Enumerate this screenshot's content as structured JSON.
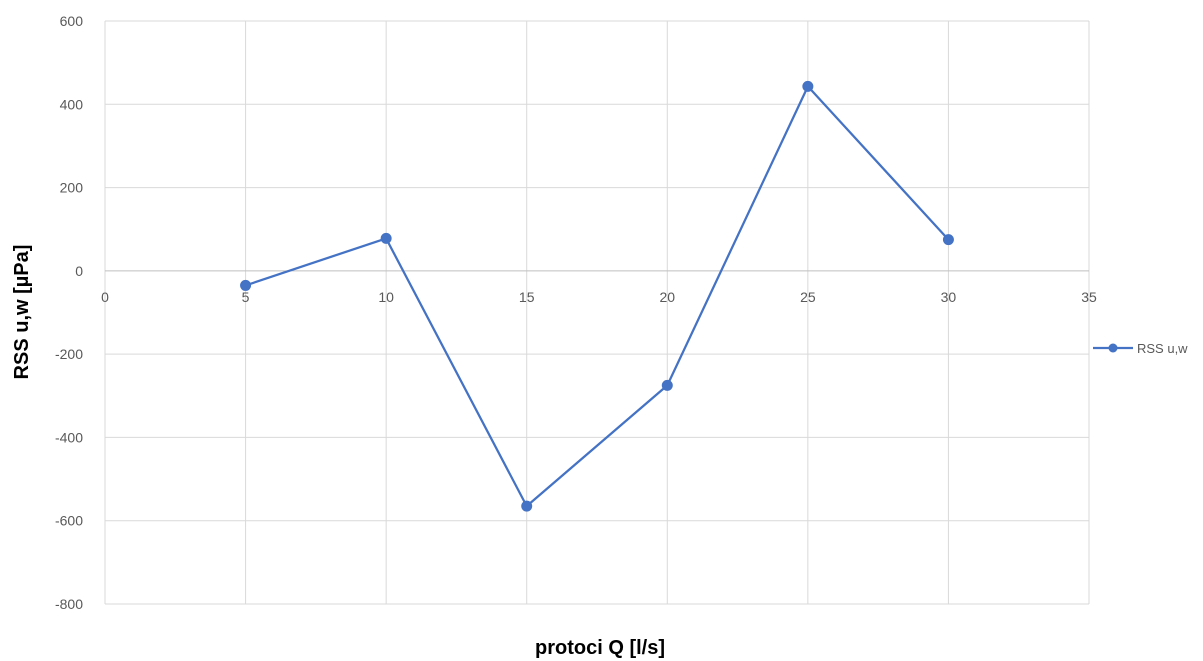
{
  "chart_data": {
    "type": "scatter",
    "title": "",
    "xlabel": "protoci Q [l/s]",
    "ylabel": "RSS u,w [µPa]",
    "xlim": [
      0,
      35
    ],
    "ylim": [
      -800,
      600
    ],
    "x_ticks": [
      "0",
      "5",
      "10",
      "15",
      "20",
      "25",
      "30",
      "35"
    ],
    "y_ticks": [
      "600",
      "400",
      "200",
      "0",
      "-200",
      "-400",
      "-600",
      "-800"
    ],
    "grid": true,
    "legend_position": "right",
    "series": [
      {
        "name": "RSS u,w",
        "color": "#4472C4",
        "marker": "circle",
        "connected": true,
        "x": [
          5,
          10,
          15,
          20,
          25,
          30
        ],
        "y": [
          -35,
          78,
          -565,
          -275,
          443,
          75
        ]
      }
    ]
  }
}
